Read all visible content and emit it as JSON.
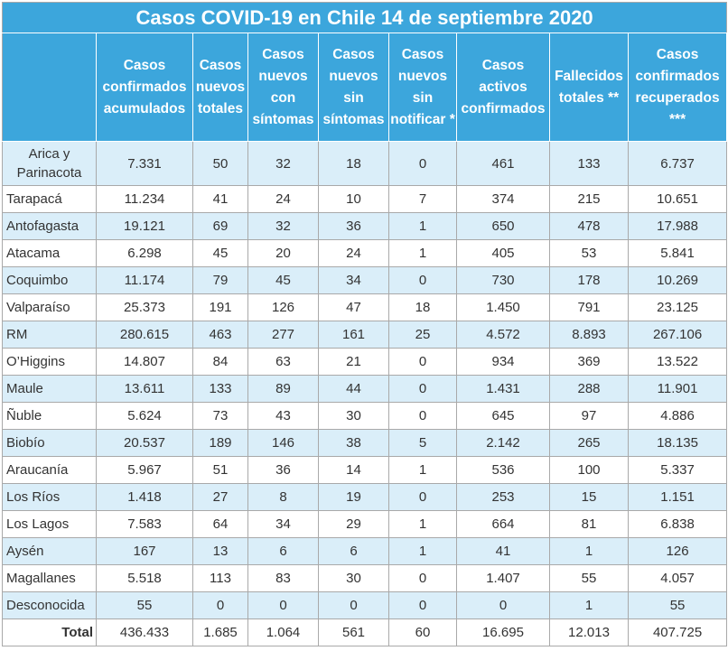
{
  "title": "Casos COVID-19 en Chile 14 de septiembre 2020",
  "columns": [
    "Casos confirmados acumulados",
    "Casos nuevos totales",
    "Casos nuevos con síntomas",
    "Casos nuevos sin síntomas",
    "Casos nuevos sin notificar *",
    "Casos activos confirmados",
    "Fallecidos totales **",
    "Casos confirmados recuperados ***"
  ],
  "rows": [
    {
      "region": "Arica y Parinacota",
      "values": [
        "7.331",
        "50",
        "32",
        "18",
        "0",
        "461",
        "133",
        "6.737"
      ]
    },
    {
      "region": "Tarapacá",
      "values": [
        "11.234",
        "41",
        "24",
        "10",
        "7",
        "374",
        "215",
        "10.651"
      ]
    },
    {
      "region": "Antofagasta",
      "values": [
        "19.121",
        "69",
        "32",
        "36",
        "1",
        "650",
        "478",
        "17.988"
      ]
    },
    {
      "region": "Atacama",
      "values": [
        "6.298",
        "45",
        "20",
        "24",
        "1",
        "405",
        "53",
        "5.841"
      ]
    },
    {
      "region": "Coquimbo",
      "values": [
        "11.174",
        "79",
        "45",
        "34",
        "0",
        "730",
        "178",
        "10.269"
      ]
    },
    {
      "region": "Valparaíso",
      "values": [
        "25.373",
        "191",
        "126",
        "47",
        "18",
        "1.450",
        "791",
        "23.125"
      ]
    },
    {
      "region": "RM",
      "values": [
        "280.615",
        "463",
        "277",
        "161",
        "25",
        "4.572",
        "8.893",
        "267.106"
      ]
    },
    {
      "region": "O’Higgins",
      "values": [
        "14.807",
        "84",
        "63",
        "21",
        "0",
        "934",
        "369",
        "13.522"
      ]
    },
    {
      "region": "Maule",
      "values": [
        "13.611",
        "133",
        "89",
        "44",
        "0",
        "1.431",
        "288",
        "11.901"
      ]
    },
    {
      "region": "Ñuble",
      "values": [
        "5.624",
        "73",
        "43",
        "30",
        "0",
        "645",
        "97",
        "4.886"
      ]
    },
    {
      "region": "Biobío",
      "values": [
        "20.537",
        "189",
        "146",
        "38",
        "5",
        "2.142",
        "265",
        "18.135"
      ]
    },
    {
      "region": "Araucanía",
      "values": [
        "5.967",
        "51",
        "36",
        "14",
        "1",
        "536",
        "100",
        "5.337"
      ]
    },
    {
      "region": "Los Ríos",
      "values": [
        "1.418",
        "27",
        "8",
        "19",
        "0",
        "253",
        "15",
        "1.151"
      ]
    },
    {
      "region": "Los Lagos",
      "values": [
        "7.583",
        "64",
        "34",
        "29",
        "1",
        "664",
        "81",
        "6.838"
      ]
    },
    {
      "region": "Aysén",
      "values": [
        "167",
        "13",
        "6",
        "6",
        "1",
        "41",
        "1",
        "126"
      ]
    },
    {
      "region": "Magallanes",
      "values": [
        "5.518",
        "113",
        "83",
        "30",
        "0",
        "1.407",
        "55",
        "4.057"
      ]
    },
    {
      "region": "Desconocida",
      "values": [
        "55",
        "0",
        "0",
        "0",
        "0",
        "0",
        "1",
        "55"
      ]
    }
  ],
  "total": {
    "label": "Total",
    "values": [
      "436.433",
      "1.685",
      "1.064",
      "561",
      "60",
      "16.695",
      "12.013",
      "407.725"
    ]
  },
  "colors": {
    "header_bg": "#3ca6dc",
    "alt_row_bg": "#daeef9",
    "border": "#a9a9a9"
  }
}
